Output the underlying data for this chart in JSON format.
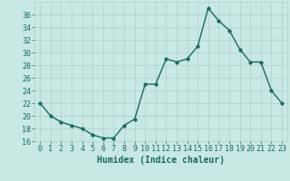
{
  "x": [
    0,
    1,
    2,
    3,
    4,
    5,
    6,
    7,
    8,
    9,
    10,
    11,
    12,
    13,
    14,
    15,
    16,
    17,
    18,
    19,
    20,
    21,
    22,
    23
  ],
  "y": [
    22,
    20,
    19,
    18.5,
    18,
    17,
    16.5,
    16.5,
    18.5,
    19.5,
    25,
    25,
    29,
    28.5,
    29,
    31,
    37,
    35,
    33.5,
    30.5,
    28.5,
    28.5,
    24,
    22
  ],
  "line_color": "#1a6b5a",
  "marker_color": "#1a6b5a",
  "bg_color": "#c8e8e4",
  "grid_color": "#b0cfcb",
  "xlabel": "Humidex (Indice chaleur)",
  "ylim": [
    16,
    38
  ],
  "xlim": [
    -0.5,
    23.5
  ],
  "yticks": [
    16,
    18,
    20,
    22,
    24,
    26,
    28,
    30,
    32,
    34,
    36
  ],
  "xticks": [
    0,
    1,
    2,
    3,
    4,
    5,
    6,
    7,
    8,
    9,
    10,
    11,
    12,
    13,
    14,
    15,
    16,
    17,
    18,
    19,
    20,
    21,
    22,
    23
  ],
  "xlabel_fontsize": 7,
  "tick_fontsize": 6,
  "line_width": 1.0,
  "marker_size": 2.5
}
